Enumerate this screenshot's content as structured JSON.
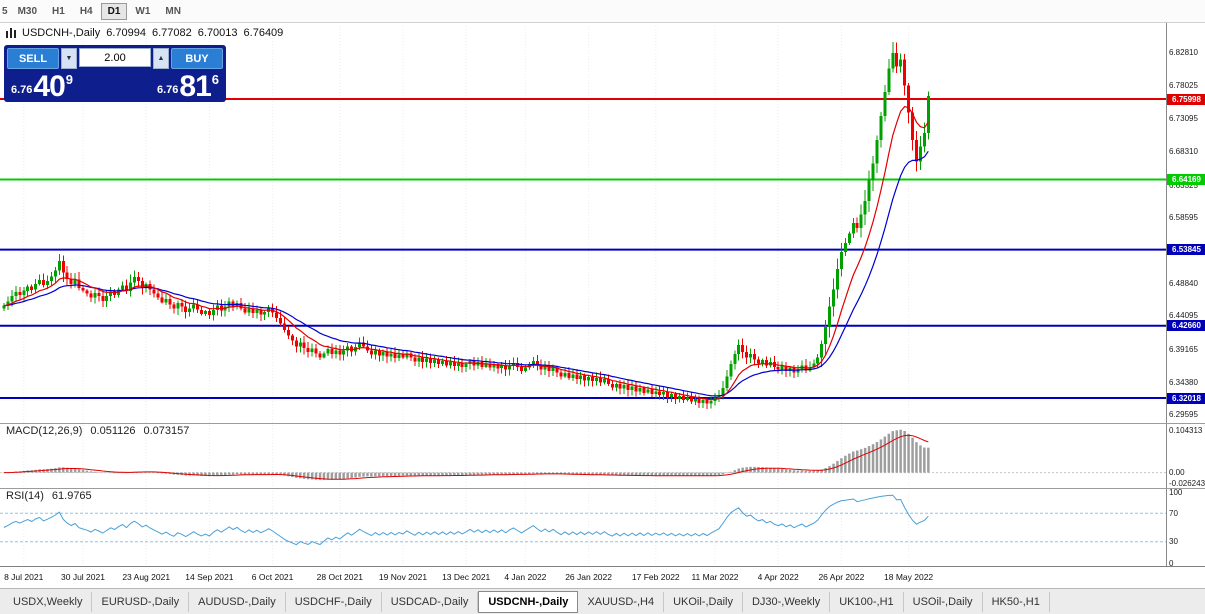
{
  "toolbar": {
    "timeframes": [
      {
        "label": "5",
        "active": false,
        "partial": true
      },
      {
        "label": "M30",
        "active": false
      },
      {
        "label": "H1",
        "active": false
      },
      {
        "label": "H4",
        "active": false
      },
      {
        "label": "D1",
        "active": true
      },
      {
        "label": "W1",
        "active": false
      },
      {
        "label": "MN",
        "active": false
      }
    ]
  },
  "chart": {
    "legend": {
      "symbol_period": "USDCNH-,Daily",
      "open": "6.70994",
      "high": "6.77082",
      "low": "6.70013",
      "close": "6.76409"
    },
    "trade_panel": {
      "sell_label": "SELL",
      "buy_label": "BUY",
      "volume": "2.00",
      "sell_price": {
        "big_prefix": "6.76",
        "pips": "40",
        "pip_fraction": "9"
      },
      "buy_price": {
        "big_prefix": "6.76",
        "pips": "81",
        "pip_fraction": "6"
      }
    },
    "y_axis_labels": [
      "6.82810",
      "6.78025",
      "6.73095",
      "6.68310",
      "6.63325",
      "6.58595",
      "6.48840",
      "6.44095",
      "6.39165",
      "6.34380",
      "6.29595"
    ],
    "levels": [
      {
        "price": 6.75998,
        "label": "6.75998",
        "color": "#e00000"
      },
      {
        "price": 6.64169,
        "label": "6.64169",
        "color": "#00cc00"
      },
      {
        "price": 6.53845,
        "label": "6.53845",
        "color": "#0000bb"
      },
      {
        "price": 6.4266,
        "label": "6.42660",
        "color": "#0000bb"
      },
      {
        "price": 6.32018,
        "label": "6.32018",
        "color": "#0000bb"
      }
    ]
  },
  "macd_panel": {
    "title": "MACD(12,26,9)",
    "value1": "0.051126",
    "value2": "0.073157",
    "axis_labels": [
      "0.104313",
      "0.00",
      "-0.026243"
    ]
  },
  "rsi_panel": {
    "title": "RSI(14)",
    "value": "61.9765",
    "axis_labels": [
      "100",
      "70",
      "30",
      "0"
    ],
    "levels": [
      70,
      30
    ]
  },
  "x_axis": {
    "labels": [
      {
        "text": "8 Jul 2021",
        "i": 5
      },
      {
        "text": "30 Jul 2021",
        "i": 20
      },
      {
        "text": "23 Aug 2021",
        "i": 36
      },
      {
        "text": "14 Sep 2021",
        "i": 52
      },
      {
        "text": "6 Oct 2021",
        "i": 68
      },
      {
        "text": "28 Oct 2021",
        "i": 85
      },
      {
        "text": "19 Nov 2021",
        "i": 101
      },
      {
        "text": "13 Dec 2021",
        "i": 117
      },
      {
        "text": "4 Jan 2022",
        "i": 132
      },
      {
        "text": "26 Jan 2022",
        "i": 148
      },
      {
        "text": "17 Feb 2022",
        "i": 165
      },
      {
        "text": "11 Mar 2022",
        "i": 180
      },
      {
        "text": "4 Apr 2022",
        "i": 196
      },
      {
        "text": "26 Apr 2022",
        "i": 212
      },
      {
        "text": "18 May 2022",
        "i": 229
      }
    ]
  },
  "tabs": {
    "active": "USDCNH-,Daily",
    "items": [
      "USDX,Weekly",
      "EURUSD-,Daily",
      "AUDUSD-,Daily",
      "USDCHF-,Daily",
      "USDCAD-,Daily",
      "USDCNH-,Daily",
      "XAUUSD-,H4",
      "UKOil-,Daily",
      "DJ30-,Weekly",
      "UK100-,H1",
      "USOil-,Daily",
      "HK50-,H1"
    ]
  },
  "icons": {
    "volume_down": "▼",
    "volume_up": "▲"
  },
  "chart_data": {
    "type": "candlestick+indicators",
    "symbol": "USDCNH-",
    "period": "Daily",
    "ylim": [
      6.2864,
      6.8674
    ],
    "ma_fast_period": 10,
    "ma_slow_period": 21,
    "macd": {
      "fast": 12,
      "slow": 26,
      "signal": 9
    },
    "rsi_period": 14,
    "closes": [
      6.456,
      6.4625,
      6.47,
      6.4762,
      6.4718,
      6.478,
      6.484,
      6.4795,
      6.488,
      6.4938,
      6.4862,
      6.492,
      6.4988,
      6.508,
      6.5215,
      6.505,
      6.495,
      6.488,
      6.4948,
      6.482,
      6.478,
      6.474,
      6.468,
      6.475,
      6.47,
      6.463,
      6.47,
      6.477,
      6.472,
      6.48,
      6.486,
      6.478,
      6.49,
      6.498,
      6.492,
      6.483,
      6.488,
      6.48,
      6.474,
      6.468,
      6.461,
      6.466,
      6.458,
      6.452,
      6.46,
      6.455,
      6.447,
      6.452,
      6.458,
      6.45,
      6.444,
      6.448,
      6.442,
      6.45,
      6.456,
      6.449,
      6.455,
      6.462,
      6.455,
      6.46,
      6.452,
      6.446,
      6.452,
      6.445,
      6.45,
      6.443,
      6.447,
      6.452,
      6.446,
      6.438,
      6.43,
      6.42,
      6.412,
      6.405,
      6.396,
      6.402,
      6.394,
      6.388,
      6.393,
      6.386,
      6.38,
      6.386,
      6.392,
      6.385,
      6.39,
      6.384,
      6.39,
      6.396,
      6.389,
      6.395,
      6.402,
      6.396,
      6.39,
      6.384,
      6.39,
      6.383,
      6.388,
      6.381,
      6.386,
      6.379,
      6.384,
      6.38,
      6.386,
      6.38,
      6.374,
      6.38,
      6.373,
      6.378,
      6.372,
      6.377,
      6.37,
      6.375,
      6.368,
      6.373,
      6.367,
      6.372,
      6.366,
      6.37,
      6.375,
      6.368,
      6.373,
      6.366,
      6.371,
      6.365,
      6.37,
      6.364,
      6.369,
      6.362,
      6.368,
      6.372,
      6.366,
      6.36,
      6.365,
      6.37,
      6.375,
      6.368,
      6.362,
      6.367,
      6.36,
      6.365,
      6.358,
      6.352,
      6.357,
      6.35,
      6.355,
      6.348,
      6.353,
      6.346,
      6.351,
      6.345,
      6.35,
      6.343,
      6.348,
      6.341,
      6.336,
      6.341,
      6.334,
      6.339,
      6.332,
      6.337,
      6.33,
      6.335,
      6.328,
      6.333,
      6.326,
      6.33,
      6.325,
      6.329,
      6.322,
      6.326,
      6.319,
      6.323,
      6.317,
      6.321,
      6.315,
      6.319,
      6.313,
      6.317,
      6.312,
      6.316,
      6.32,
      6.324,
      6.335,
      6.352,
      6.37,
      6.385,
      6.398,
      6.388,
      6.38,
      6.385,
      6.377,
      6.371,
      6.376,
      6.368,
      6.373,
      6.366,
      6.362,
      6.367,
      6.36,
      6.365,
      6.358,
      6.363,
      6.368,
      6.361,
      6.366,
      6.371,
      6.38,
      6.4,
      6.425,
      6.455,
      6.48,
      6.51,
      6.535,
      6.548,
      6.562,
      6.578,
      6.57,
      6.59,
      6.61,
      6.64,
      6.665,
      6.7,
      6.735,
      6.77,
      6.805,
      6.828,
      6.808,
      6.818,
      6.78,
      6.74,
      6.7,
      6.668,
      6.69,
      6.70994,
      6.76409
    ],
    "wick_overrides": {
      "14": [
        6.532,
        6.501
      ],
      "234": [
        6.77082,
        6.70013
      ]
    },
    "colors": {
      "up": "#00a000",
      "down": "#f20000",
      "ma_fast": "#e00000",
      "ma_slow": "#0000d0",
      "macd_hist": "#9e9e9e",
      "macd_signal": "#e00000",
      "rsi_line": "#4aa0d8",
      "rsi_level": "#8fc3e8"
    }
  }
}
